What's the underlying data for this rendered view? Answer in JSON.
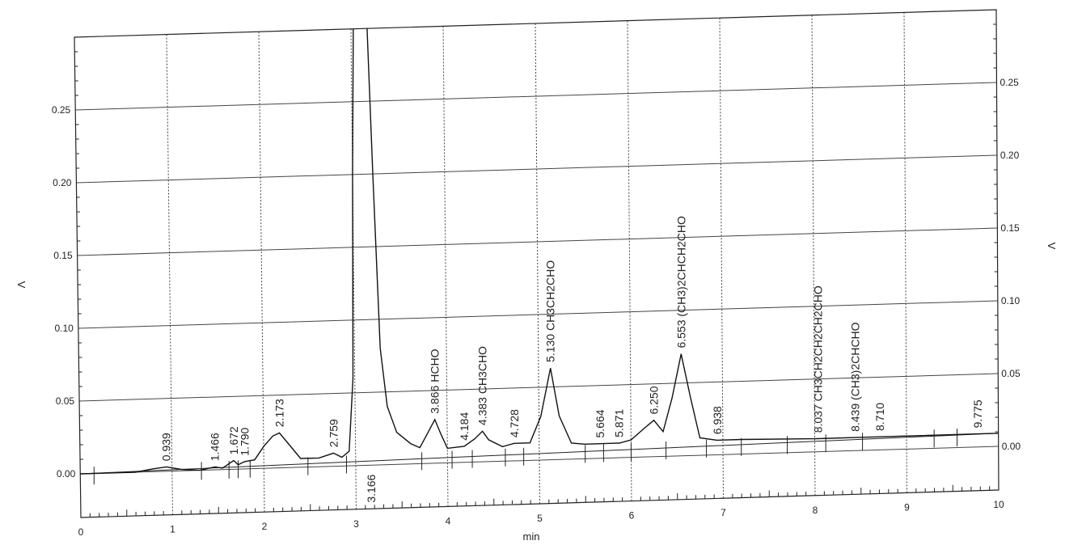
{
  "chart_data": {
    "type": "line",
    "title": "",
    "xlabel": "min",
    "ylabel_left": "V",
    "ylabel_right": "V",
    "xlim": [
      0,
      10
    ],
    "ylim_left": [
      -0.03,
      0.3
    ],
    "ylim_right": [
      -0.03,
      0.3
    ],
    "x_ticks": [
      "0",
      "1",
      "2",
      "3",
      "4",
      "5",
      "6",
      "7",
      "8",
      "9",
      "10"
    ],
    "y_ticks_left": [
      "0.00",
      "0.05",
      "0.10",
      "0.15",
      "0.20",
      "0.25"
    ],
    "y_ticks_right": [
      "0.00",
      "0.05",
      "0.10",
      "0.15",
      "0.20",
      "0.25"
    ],
    "grid": true,
    "series": [
      {
        "points": [
          [
            0.0,
            0.0
          ],
          [
            0.6,
            0.0
          ],
          [
            0.8,
            0.002
          ],
          [
            0.94,
            0.003
          ],
          [
            1.1,
            0.001
          ],
          [
            1.3,
            0.0
          ],
          [
            1.466,
            0.002
          ],
          [
            1.55,
            0.001
          ],
          [
            1.672,
            0.006
          ],
          [
            1.72,
            0.003
          ],
          [
            1.79,
            0.005
          ],
          [
            1.9,
            0.006
          ],
          [
            2.0,
            0.015
          ],
          [
            2.1,
            0.022
          ],
          [
            2.173,
            0.024
          ],
          [
            2.25,
            0.018
          ],
          [
            2.4,
            0.006
          ],
          [
            2.6,
            0.006
          ],
          [
            2.759,
            0.009
          ],
          [
            2.85,
            0.006
          ],
          [
            2.93,
            0.01
          ],
          [
            2.98,
            0.06
          ],
          [
            3.0,
            0.2
          ],
          [
            3.03,
            0.32
          ],
          [
            3.1,
            0.32
          ],
          [
            3.166,
            0.32
          ],
          [
            3.22,
            0.2
          ],
          [
            3.28,
            0.08
          ],
          [
            3.35,
            0.04
          ],
          [
            3.45,
            0.022
          ],
          [
            3.6,
            0.014
          ],
          [
            3.7,
            0.011
          ],
          [
            3.78,
            0.02
          ],
          [
            3.866,
            0.03
          ],
          [
            3.93,
            0.02
          ],
          [
            4.0,
            0.01
          ],
          [
            4.184,
            0.011
          ],
          [
            4.3,
            0.016
          ],
          [
            4.383,
            0.021
          ],
          [
            4.45,
            0.015
          ],
          [
            4.6,
            0.01
          ],
          [
            4.728,
            0.012
          ],
          [
            4.9,
            0.012
          ],
          [
            5.02,
            0.03
          ],
          [
            5.13,
            0.063
          ],
          [
            5.22,
            0.03
          ],
          [
            5.35,
            0.011
          ],
          [
            5.5,
            0.01
          ],
          [
            5.664,
            0.01
          ],
          [
            5.871,
            0.01
          ],
          [
            6.0,
            0.012
          ],
          [
            6.15,
            0.02
          ],
          [
            6.25,
            0.025
          ],
          [
            6.35,
            0.017
          ],
          [
            6.45,
            0.04
          ],
          [
            6.553,
            0.07
          ],
          [
            6.65,
            0.04
          ],
          [
            6.75,
            0.012
          ],
          [
            6.938,
            0.01
          ],
          [
            7.2,
            0.01
          ],
          [
            8.0,
            0.009
          ],
          [
            8.037,
            0.009
          ],
          [
            8.439,
            0.009
          ],
          [
            8.71,
            0.009
          ],
          [
            9.0,
            0.009
          ],
          [
            9.775,
            0.009
          ],
          [
            10.0,
            0.009
          ]
        ]
      }
    ],
    "peak_labels": [
      {
        "rt": 0.939,
        "label": "0.939"
      },
      {
        "rt": 1.466,
        "label": "1.466"
      },
      {
        "rt": 1.672,
        "label": "1.672"
      },
      {
        "rt": 1.79,
        "label": "1.790"
      },
      {
        "rt": 2.173,
        "label": "2.173"
      },
      {
        "rt": 2.759,
        "label": "2.759"
      },
      {
        "rt": 3.166,
        "label": "3.166",
        "below": true
      },
      {
        "rt": 3.866,
        "label": "3.866  HCHO"
      },
      {
        "rt": 4.184,
        "label": "4.184"
      },
      {
        "rt": 4.383,
        "label": "4.383  CH3CHO"
      },
      {
        "rt": 4.728,
        "label": "4.728"
      },
      {
        "rt": 5.13,
        "label": "5.130  CH3CH2CHO"
      },
      {
        "rt": 5.664,
        "label": "5.664"
      },
      {
        "rt": 5.871,
        "label": "5.871"
      },
      {
        "rt": 6.25,
        "label": "6.250"
      },
      {
        "rt": 6.553,
        "label": "6.553  (CH3)2CHCH2CHO"
      },
      {
        "rt": 6.938,
        "label": "6.938"
      },
      {
        "rt": 8.037,
        "label": "8.037  CH3CH2CH2CH2CHO"
      },
      {
        "rt": 8.439,
        "label": "8.439  (CH3)2CHCHO"
      },
      {
        "rt": 8.71,
        "label": "8.710"
      },
      {
        "rt": 9.775,
        "label": "9.775"
      }
    ],
    "integration_marks": [
      0.15,
      1.32,
      1.62,
      1.72,
      1.85,
      2.48,
      2.9,
      3.72,
      4.05,
      4.27,
      4.63,
      4.83,
      5.5,
      5.7,
      6.0,
      6.38,
      6.82,
      7.2,
      7.7,
      8.12,
      8.52,
      9.3,
      9.55
    ]
  }
}
